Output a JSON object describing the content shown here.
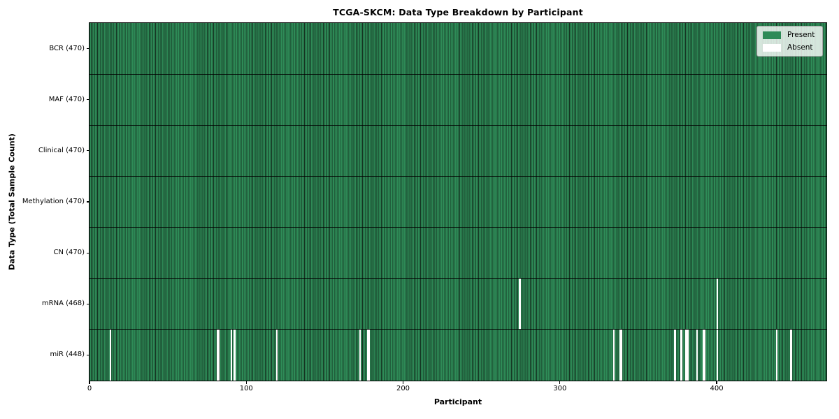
{
  "chart_data": {
    "type": "heatmap",
    "title": "TCGA-SKCM: Data Type Breakdown by Participant",
    "xlabel": "Participant",
    "ylabel": "Data Type (Total Sample Count)",
    "x_ticks": [
      0,
      100,
      200,
      300,
      400
    ],
    "x_range": [
      0,
      470
    ],
    "n_participants": 470,
    "grid": false,
    "legend_position": "upper right",
    "rows": [
      {
        "name": "BCR",
        "label": "BCR (470)",
        "present_count": 470,
        "absent_participants": []
      },
      {
        "name": "MAF",
        "label": "MAF (470)",
        "present_count": 470,
        "absent_participants": []
      },
      {
        "name": "Clinical",
        "label": "Clinical (470)",
        "present_count": 470,
        "absent_participants": []
      },
      {
        "name": "Methylation",
        "label": "Methylation (470)",
        "present_count": 470,
        "absent_participants": []
      },
      {
        "name": "CN",
        "label": "CN (470)",
        "present_count": 470,
        "absent_participants": []
      },
      {
        "name": "mRNA",
        "label": "mRNA (468)",
        "present_count": 468,
        "absent_participants": [
          274,
          400
        ]
      },
      {
        "name": "miR",
        "label": "miR (448)",
        "present_count": 448,
        "absent_participants": [
          13,
          81,
          82,
          90,
          92,
          119,
          172,
          177,
          178,
          334,
          338,
          339,
          373,
          377,
          380,
          381,
          387,
          391,
          392,
          400,
          438,
          447
        ]
      }
    ],
    "legend": [
      {
        "label": "Present",
        "color": "#2e8b57"
      },
      {
        "label": "Absent",
        "color": "#ffffff"
      }
    ],
    "colors": {
      "present": "#2e8b57",
      "absent": "#ffffff",
      "cell_edge": "#143321",
      "row_divider": "#000000",
      "axes_border": "#000000"
    }
  }
}
